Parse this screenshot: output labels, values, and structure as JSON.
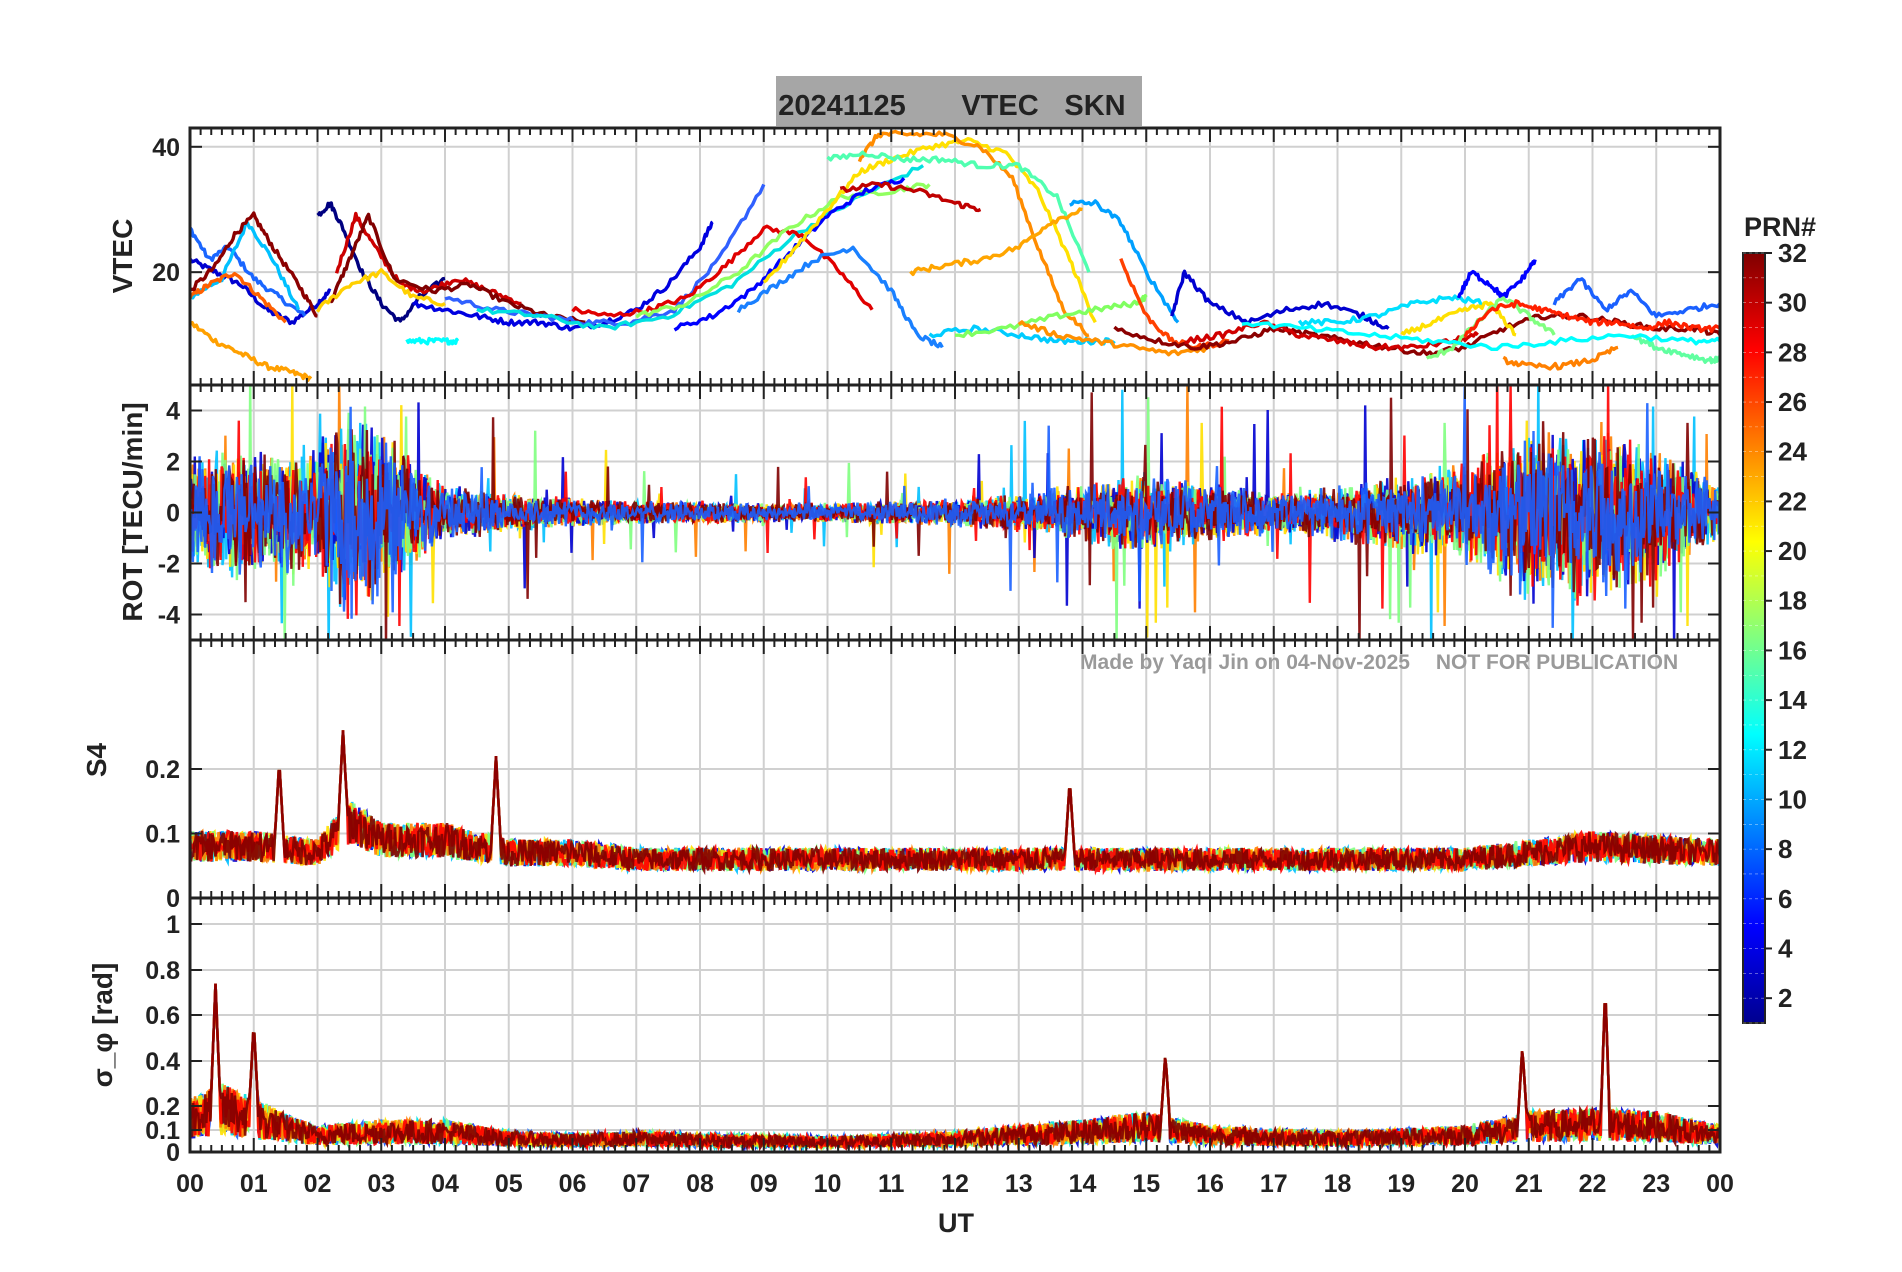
{
  "title": {
    "date": "20241125",
    "quantity": "VTEC",
    "station": "SKN"
  },
  "watermark": {
    "author": "Made by Yaqi Jin on 04-Nov-2025",
    "notice": "NOT FOR PUBLICATION"
  },
  "colorbar": {
    "label": "PRN#",
    "range": [
      1,
      32
    ],
    "ticks": [
      "2",
      "4",
      "6",
      "8",
      "10",
      "12",
      "14",
      "16",
      "18",
      "20",
      "22",
      "24",
      "26",
      "28",
      "30",
      "32"
    ],
    "colormap": [
      "#00008f",
      "#0000ff",
      "#0080ff",
      "#00ffff",
      "#80ff80",
      "#ffff00",
      "#ff8000",
      "#ff0000",
      "#800000"
    ]
  },
  "chart_data": [
    {
      "type": "line",
      "panel": "vtec",
      "ylabel": "VTEC",
      "ylim": [
        2,
        43
      ],
      "yticks": [
        20,
        40
      ],
      "xlim": [
        0,
        24
      ],
      "grid": true,
      "series": [
        {
          "color": "#0000d0",
          "x": [
            0.0,
            0.4,
            0.8,
            1.2,
            1.6,
            2.0,
            2.2
          ],
          "values": [
            22,
            20,
            18,
            14,
            12,
            15,
            17
          ]
        },
        {
          "color": "#1a66ff",
          "x": [
            0.0,
            0.3,
            0.6,
            1.0,
            1.4,
            1.8
          ],
          "values": [
            27,
            22,
            24,
            19,
            16,
            13
          ]
        },
        {
          "color": "#00c0ff",
          "x": [
            0.0,
            0.5,
            0.9,
            1.3,
            1.7
          ],
          "values": [
            16,
            19,
            28,
            22,
            14
          ]
        },
        {
          "color": "#ffa000",
          "x": [
            0.0,
            0.4,
            0.8,
            1.2,
            1.6,
            1.9
          ],
          "values": [
            12,
            9,
            7,
            5,
            4,
            3
          ]
        },
        {
          "color": "#ff6000",
          "x": [
            0.0,
            0.3,
            0.7,
            1.1,
            1.5
          ],
          "values": [
            16,
            18,
            20,
            16,
            12
          ]
        },
        {
          "color": "#8b0000",
          "x": [
            0.0,
            0.4,
            0.7,
            1.0,
            1.3,
            1.7,
            2.0
          ],
          "values": [
            17,
            21,
            26,
            29,
            24,
            18,
            13
          ]
        },
        {
          "color": "#000080",
          "x": [
            2.0,
            2.2,
            2.4,
            2.7,
            3.0,
            3.3,
            3.6,
            4.0
          ],
          "values": [
            29,
            31,
            27,
            20,
            15,
            12,
            16,
            19
          ]
        },
        {
          "color": "#cc0000",
          "x": [
            2.3,
            2.6,
            2.9,
            3.3,
            3.7,
            4.2,
            4.7,
            5.2
          ],
          "values": [
            20,
            29,
            24,
            18,
            17,
            19,
            17,
            15
          ]
        },
        {
          "color": "#800000",
          "x": [
            2.2,
            2.5,
            2.8,
            3.2,
            3.8,
            4.4,
            5.0,
            5.6,
            6.2
          ],
          "values": [
            15,
            22,
            29,
            19,
            17,
            18,
            15,
            13,
            12
          ]
        },
        {
          "color": "#ffd000",
          "x": [
            2.0,
            2.5,
            3.0,
            3.5,
            4.0
          ],
          "values": [
            14,
            18,
            20,
            16,
            15
          ]
        },
        {
          "color": "#00ffff",
          "x": [
            3.4,
            3.7,
            4.0,
            4.2
          ],
          "values": [
            9,
            9,
            9,
            9
          ]
        },
        {
          "color": "#0000e0",
          "x": [
            3.5,
            4.0,
            4.5,
            5.0,
            5.5,
            6.0,
            6.5,
            7.0,
            7.5,
            8.0,
            8.2
          ],
          "values": [
            15,
            14,
            13,
            12,
            12,
            11,
            12,
            14,
            18,
            24,
            28
          ]
        },
        {
          "color": "#3060ff",
          "x": [
            4.0,
            4.8,
            5.5,
            6.2,
            6.9,
            7.6,
            8.3,
            9.0
          ],
          "values": [
            16,
            14,
            13,
            12,
            12,
            14,
            22,
            34
          ]
        },
        {
          "color": "#00e0e0",
          "x": [
            4.5,
            5.5,
            6.5,
            7.5,
            8.5,
            9.5,
            10.5,
            11.5
          ],
          "values": [
            14,
            13,
            11,
            13,
            18,
            26,
            32,
            37
          ]
        },
        {
          "color": "#e00000",
          "x": [
            6.0,
            6.6,
            7.2,
            7.8,
            8.4,
            9.0,
            9.6,
            10.2,
            10.7
          ],
          "values": [
            14,
            13,
            14,
            16,
            21,
            27,
            26,
            20,
            14
          ]
        },
        {
          "color": "#90ff60",
          "x": [
            7.0,
            7.8,
            8.6,
            9.4,
            10.2,
            11.0,
            11.6
          ],
          "values": [
            13,
            15,
            20,
            27,
            32,
            33,
            34
          ]
        },
        {
          "color": "#0000ff",
          "x": [
            7.6,
            8.2,
            8.8,
            9.4,
            10.0,
            10.6,
            11.2
          ],
          "values": [
            11,
            13,
            17,
            23,
            29,
            33,
            35
          ]
        },
        {
          "color": "#1a80ff",
          "x": [
            8.6,
            9.2,
            9.8,
            10.4,
            11.0,
            11.4,
            11.8
          ],
          "values": [
            14,
            18,
            22,
            24,
            17,
            10,
            8
          ]
        },
        {
          "color": "#ffe000",
          "x": [
            9.0,
            9.5,
            10.0,
            10.5,
            11.0,
            11.6,
            12.2,
            12.8,
            13.3,
            13.8,
            14.2
          ],
          "values": [
            18,
            24,
            30,
            36,
            38,
            40,
            41,
            39,
            33,
            22,
            12
          ]
        },
        {
          "color": "#ff8c00",
          "x": [
            10.5,
            10.8,
            11.2,
            11.8,
            12.4,
            12.9,
            13.3,
            13.7,
            14.1
          ],
          "values": [
            38,
            42,
            42,
            42,
            40,
            35,
            24,
            14,
            10
          ]
        },
        {
          "color": "#50ffb0",
          "x": [
            10.0,
            10.6,
            11.2,
            11.8,
            12.4,
            13.0,
            13.6,
            14.1
          ],
          "values": [
            38,
            39,
            38,
            38,
            37,
            37,
            32,
            20
          ]
        },
        {
          "color": "#00ccff",
          "x": [
            11.6,
            12.3,
            13.0,
            13.6,
            14.1,
            14.5
          ],
          "values": [
            10,
            11,
            10,
            9,
            9,
            9
          ]
        },
        {
          "color": "#80ff60",
          "x": [
            12.0,
            12.8,
            13.6,
            14.2,
            14.8,
            15.0
          ],
          "values": [
            10,
            11,
            13,
            14,
            15,
            16
          ]
        },
        {
          "color": "#ffa500",
          "x": [
            11.3,
            11.8,
            12.4,
            13.0,
            13.5,
            14.0
          ],
          "values": [
            20,
            21,
            22,
            24,
            28,
            30
          ]
        },
        {
          "color": "#c00000",
          "x": [
            10.2,
            10.8,
            11.4,
            12.0,
            12.4
          ],
          "values": [
            33,
            34,
            33,
            31,
            30
          ]
        },
        {
          "color": "#00a0ff",
          "x": [
            13.8,
            14.2,
            14.6,
            15.0,
            15.5
          ],
          "values": [
            31,
            31,
            28,
            20,
            12
          ]
        },
        {
          "color": "#ff4000",
          "x": [
            14.6,
            15.0,
            15.4,
            15.8,
            16.3
          ],
          "values": [
            22,
            13,
            9,
            8,
            9
          ]
        },
        {
          "color": "#ff9000",
          "x": [
            13.0,
            13.6,
            14.2,
            14.8,
            15.4,
            16.0
          ],
          "values": [
            12,
            10,
            9,
            8,
            7,
            8
          ]
        },
        {
          "color": "#8b0000",
          "x": [
            14.5,
            15.2,
            15.8,
            16.4,
            17.0,
            17.6,
            18.2,
            18.8,
            19.4,
            20.0,
            20.6,
            21.2,
            21.8,
            22.4,
            23.0,
            23.6,
            24.0
          ],
          "values": [
            11,
            9,
            8,
            9,
            11,
            10,
            9,
            8,
            7,
            8,
            11,
            13,
            13,
            12,
            11,
            11,
            10
          ]
        },
        {
          "color": "#0000d0",
          "x": [
            15.4,
            15.6,
            16.0,
            16.6,
            17.2,
            17.8,
            18.4,
            18.8
          ],
          "values": [
            13,
            20,
            15,
            12,
            14,
            15,
            13,
            11
          ]
        },
        {
          "color": "#00e0ff",
          "x": [
            17.4,
            18.0,
            18.6,
            19.2,
            19.8,
            20.3
          ],
          "values": [
            12,
            12,
            13,
            15,
            16,
            15
          ]
        },
        {
          "color": "#d00000",
          "x": [
            15.6,
            16.2,
            16.8,
            17.4,
            18.0,
            18.6,
            19.2,
            19.8,
            20.2
          ],
          "values": [
            9,
            10,
            12,
            10,
            9,
            8,
            8,
            9,
            10
          ]
        },
        {
          "color": "#ffe000",
          "x": [
            19.0,
            19.5,
            20.0,
            20.4,
            20.8
          ],
          "values": [
            10,
            12,
            14,
            15,
            10
          ]
        },
        {
          "color": "#0000ff",
          "x": [
            19.9,
            20.1,
            20.4,
            20.6,
            20.9,
            21.1
          ],
          "values": [
            16,
            20,
            18,
            16,
            19,
            22
          ]
        },
        {
          "color": "#80ff80",
          "x": [
            19.4,
            19.8,
            20.2,
            20.6,
            21.0,
            21.4
          ],
          "values": [
            6,
            8,
            12,
            16,
            13,
            10
          ]
        },
        {
          "color": "#ff2000",
          "x": [
            20.0,
            20.4,
            20.8,
            21.2,
            21.6,
            22.0,
            22.4,
            22.8,
            23.2,
            23.6,
            24.0
          ],
          "values": [
            10,
            14,
            15,
            14,
            13,
            12,
            12,
            11,
            12,
            11,
            11
          ]
        },
        {
          "color": "#ff8000",
          "x": [
            20.6,
            21.0,
            21.5,
            22.0,
            22.4
          ],
          "values": [
            6,
            5,
            5,
            6,
            8
          ]
        },
        {
          "color": "#1a60ff",
          "x": [
            21.4,
            21.8,
            22.2,
            22.6,
            23.0,
            23.5,
            24.0
          ],
          "values": [
            15,
            19,
            14,
            17,
            13,
            14,
            15
          ]
        },
        {
          "color": "#60ffa0",
          "x": [
            22.6,
            23.0,
            23.4,
            23.8,
            24.0
          ],
          "values": [
            10,
            8,
            7,
            6,
            6
          ]
        },
        {
          "color": "#00ffff",
          "x": [
            16.5,
            17.5,
            18.5,
            19.5,
            20.5,
            21.5,
            22.5,
            23.5,
            24.0
          ],
          "values": [
            12,
            11,
            10,
            9,
            8,
            9,
            10,
            9,
            9
          ]
        }
      ]
    },
    {
      "type": "line",
      "panel": "rot",
      "ylabel": "ROT [TECU/min]",
      "ylim": [
        -5,
        5
      ],
      "yticks": [
        -4,
        -2,
        0,
        2,
        4
      ],
      "ytick_labels": [
        "-4",
        "-2",
        "0",
        "2",
        "4"
      ],
      "xlim": [
        0,
        24
      ],
      "grid": true,
      "description_values": "dense noisy traces centred on 0 with activity envelopes",
      "envelope": {
        "x": [
          0,
          1,
          2,
          2.5,
          3,
          4,
          5,
          6,
          7,
          8,
          9,
          10,
          11,
          12,
          13,
          14,
          15,
          16,
          17,
          18,
          19,
          20,
          21,
          22,
          23,
          24
        ],
        "amplitude": [
          2.5,
          2.8,
          2.5,
          4.8,
          3.5,
          1.2,
          0.8,
          0.6,
          0.5,
          0.5,
          0.4,
          0.4,
          0.5,
          0.6,
          0.8,
          1.2,
          1.8,
          1.3,
          0.9,
          1.2,
          1.6,
          2.2,
          3.6,
          3.8,
          2.8,
          1.2
        ]
      }
    },
    {
      "type": "line",
      "panel": "s4",
      "ylabel": "S4",
      "ylim": [
        0,
        0.4
      ],
      "yticks": [
        0,
        0.1,
        0.2
      ],
      "ytick_labels": [
        "0",
        "0.1",
        "0.2"
      ],
      "xlim": [
        0,
        24
      ],
      "grid": true,
      "baseline": {
        "x": [
          0,
          1,
          2,
          2.5,
          3,
          4,
          5,
          6,
          7,
          8,
          10,
          12,
          14,
          16,
          18,
          20,
          22,
          24
        ],
        "values": [
          0.08,
          0.08,
          0.07,
          0.12,
          0.09,
          0.09,
          0.07,
          0.07,
          0.06,
          0.06,
          0.06,
          0.06,
          0.06,
          0.06,
          0.06,
          0.06,
          0.08,
          0.07
        ]
      },
      "peaks": [
        {
          "x": 2.4,
          "value": 0.26
        },
        {
          "x": 4.8,
          "value": 0.22
        },
        {
          "x": 1.4,
          "value": 0.21
        },
        {
          "x": 13.8,
          "value": 0.18
        }
      ]
    },
    {
      "type": "line",
      "panel": "sigma_phi",
      "ylabel": "σ_φ [rad]",
      "ylim": [
        0,
        1.1
      ],
      "yticks": [
        0,
        0.1,
        0.2,
        0.4,
        0.6,
        0.8,
        1
      ],
      "ytick_labels": [
        "0",
        "0.1",
        "0.2",
        "0.4",
        "0.6",
        "0.8",
        "1"
      ],
      "xlim": [
        0,
        24
      ],
      "grid": true,
      "baseline": {
        "x": [
          0,
          0.5,
          1,
          1.5,
          2,
          3,
          4,
          5,
          6,
          7,
          8,
          10,
          12,
          14,
          15,
          16,
          18,
          20,
          21,
          22,
          23,
          24
        ],
        "values": [
          0.2,
          0.25,
          0.2,
          0.14,
          0.1,
          0.12,
          0.12,
          0.08,
          0.07,
          0.08,
          0.07,
          0.06,
          0.08,
          0.12,
          0.15,
          0.1,
          0.08,
          0.1,
          0.15,
          0.16,
          0.15,
          0.1
        ]
      },
      "peaks": [
        {
          "x": 0.4,
          "value": 0.74
        },
        {
          "x": 1.0,
          "value": 0.56
        },
        {
          "x": 15.3,
          "value": 0.43
        },
        {
          "x": 20.9,
          "value": 0.46
        },
        {
          "x": 22.2,
          "value": 0.71
        }
      ]
    }
  ],
  "xaxis": {
    "label": "UT",
    "ticks": [
      "00",
      "01",
      "02",
      "03",
      "04",
      "05",
      "06",
      "07",
      "08",
      "09",
      "10",
      "11",
      "12",
      "13",
      "14",
      "15",
      "16",
      "17",
      "18",
      "19",
      "20",
      "21",
      "22",
      "23",
      "00"
    ]
  }
}
